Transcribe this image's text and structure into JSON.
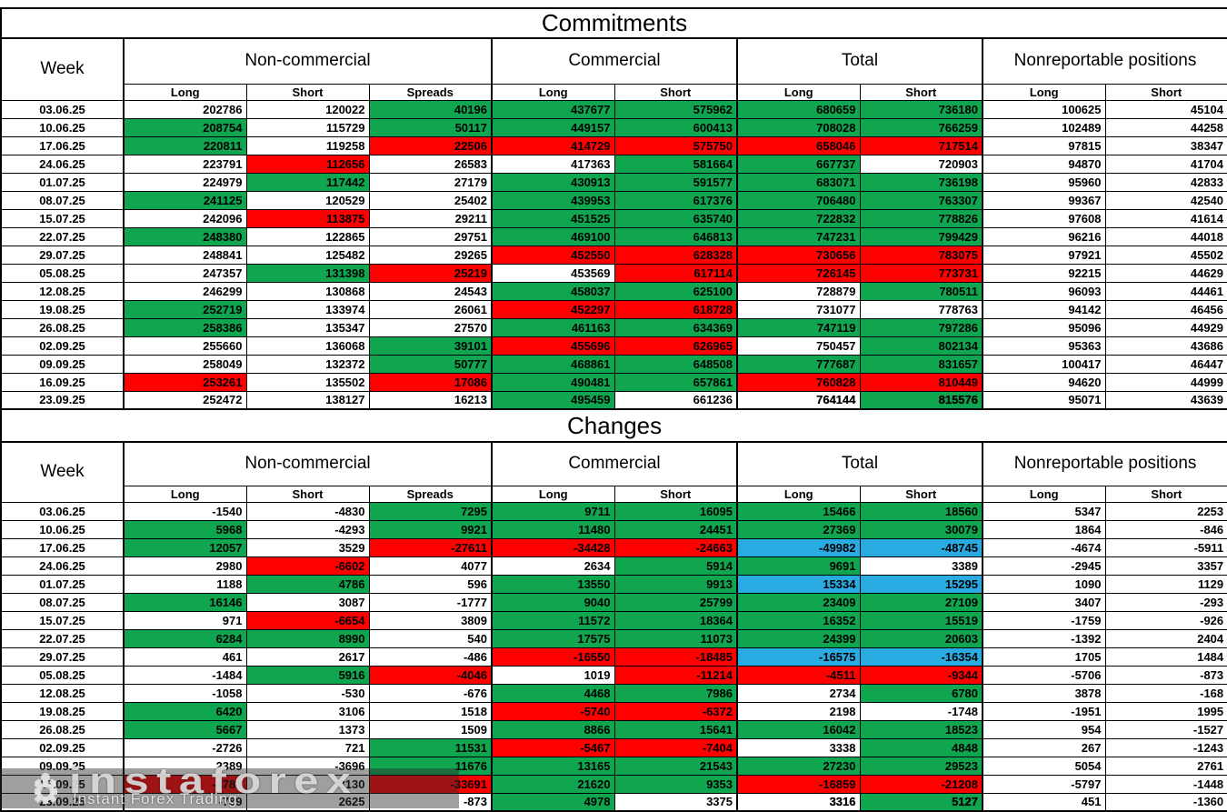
{
  "colors": {
    "g": "#10A64F",
    "r": "#FE0000",
    "b": "#29ABE2",
    "w": "#FFFFFF"
  },
  "header": {
    "week": "Week",
    "groups": [
      {
        "label": "Non-commercial",
        "cols": [
          "Long",
          "Short",
          "Spreads"
        ]
      },
      {
        "label": "Commercial",
        "cols": [
          "Long",
          "Short"
        ]
      },
      {
        "label": "Total",
        "cols": [
          "Long",
          "Short"
        ]
      },
      {
        "label": "Nonreportable positions",
        "cols": [
          "Long",
          "Short"
        ]
      }
    ]
  },
  "watermark": {
    "brand": "instaforex",
    "tagline": "Instant Forex Trading"
  },
  "tables": [
    {
      "id": "commitments",
      "title": "Commitments",
      "rows": [
        {
          "w": "03.06.25",
          "v": [
            202786,
            120022,
            40196,
            437677,
            575962,
            680659,
            736180,
            100625,
            45104
          ],
          "f": "wwgggggww"
        },
        {
          "w": "10.06.25",
          "v": [
            208754,
            115729,
            50117,
            449157,
            600413,
            708028,
            766259,
            102489,
            44258
          ],
          "f": "gwgggggww"
        },
        {
          "w": "17.06.25",
          "v": [
            220811,
            119258,
            22506,
            414729,
            575750,
            658046,
            717514,
            97815,
            38347
          ],
          "f": "gwrrrrrww"
        },
        {
          "w": "24.06.25",
          "v": [
            223791,
            112656,
            26583,
            417363,
            581664,
            667737,
            720903,
            94870,
            41704
          ],
          "f": "wrwwggwww"
        },
        {
          "w": "01.07.25",
          "v": [
            224979,
            117442,
            27179,
            430913,
            591577,
            683071,
            736198,
            95960,
            42833
          ],
          "f": "wgwggggww"
        },
        {
          "w": "08.07.25",
          "v": [
            241125,
            120529,
            25402,
            439953,
            617376,
            706480,
            763307,
            99367,
            42540
          ],
          "f": "gwwggggww"
        },
        {
          "w": "15.07.25",
          "v": [
            242096,
            113875,
            29211,
            451525,
            635740,
            722832,
            778826,
            97608,
            41614
          ],
          "f": "wrwggggww"
        },
        {
          "w": "22.07.25",
          "v": [
            248380,
            122865,
            29751,
            469100,
            646813,
            747231,
            799429,
            96216,
            44018
          ],
          "f": "gwwggggww"
        },
        {
          "w": "29.07.25",
          "v": [
            248841,
            125482,
            29265,
            452550,
            628328,
            730656,
            783075,
            97921,
            45502
          ],
          "f": "wwwrrrrww"
        },
        {
          "w": "05.08.25",
          "v": [
            247357,
            131398,
            25219,
            453569,
            617114,
            726145,
            773731,
            92215,
            44629
          ],
          "f": "wgrwrrrww"
        },
        {
          "w": "12.08.25",
          "v": [
            246299,
            130868,
            24543,
            458037,
            625100,
            728879,
            780511,
            96093,
            44461
          ],
          "f": "wwwggwgww"
        },
        {
          "w": "19.08.25",
          "v": [
            252719,
            133974,
            26061,
            452297,
            618728,
            731077,
            778763,
            94142,
            46456
          ],
          "f": "gwwrrwwww"
        },
        {
          "w": "26.08.25",
          "v": [
            258386,
            135347,
            27570,
            461163,
            634369,
            747119,
            797286,
            95096,
            44929
          ],
          "f": "gwwggggww"
        },
        {
          "w": "02.09.25",
          "v": [
            255660,
            136068,
            39101,
            455696,
            626965,
            750457,
            802134,
            95363,
            43686
          ],
          "f": "wwgrrwgww"
        },
        {
          "w": "09.09.25",
          "v": [
            258049,
            132372,
            50777,
            468861,
            648508,
            777687,
            831657,
            100417,
            46447
          ],
          "f": "wwgggggww"
        },
        {
          "w": "16.09.25",
          "v": [
            253261,
            135502,
            17086,
            490481,
            657861,
            760828,
            810449,
            94620,
            44999
          ],
          "f": "rwrggrrww"
        },
        {
          "w": "23.09.25",
          "v": [
            252472,
            138127,
            16213,
            495459,
            661236,
            764144,
            815576,
            95071,
            43639
          ],
          "f": "wwwgwwgww",
          "b": [
            5,
            6
          ]
        }
      ]
    },
    {
      "id": "changes",
      "title": "Changes",
      "rows": [
        {
          "w": "03.06.25",
          "v": [
            -1540,
            -4830,
            7295,
            9711,
            16095,
            15466,
            18560,
            5347,
            2253
          ],
          "f": "wwgggggww"
        },
        {
          "w": "10.06.25",
          "v": [
            5968,
            -4293,
            9921,
            11480,
            24451,
            27369,
            30079,
            1864,
            -846
          ],
          "f": "gwgggggww"
        },
        {
          "w": "17.06.25",
          "v": [
            12057,
            3529,
            -27611,
            -34428,
            -24663,
            -49982,
            -48745,
            -4674,
            -5911
          ],
          "f": "gwrrrbbww"
        },
        {
          "w": "24.06.25",
          "v": [
            2980,
            -6602,
            4077,
            2634,
            5914,
            9691,
            3389,
            -2945,
            3357
          ],
          "f": "wrwwggwww"
        },
        {
          "w": "01.07.25",
          "v": [
            1188,
            4786,
            596,
            13550,
            9913,
            15334,
            15295,
            1090,
            1129
          ],
          "f": "wgwggbbww"
        },
        {
          "w": "08.07.25",
          "v": [
            16146,
            3087,
            -1777,
            9040,
            25799,
            23409,
            27109,
            3407,
            -293
          ],
          "f": "gwwggggww"
        },
        {
          "w": "15.07.25",
          "v": [
            971,
            -6654,
            3809,
            11572,
            18364,
            16352,
            15519,
            -1759,
            -926
          ],
          "f": "wrwggggww"
        },
        {
          "w": "22.07.25",
          "v": [
            6284,
            8990,
            540,
            17575,
            11073,
            24399,
            20603,
            -1392,
            2404
          ],
          "f": "ggwggggww"
        },
        {
          "w": "29.07.25",
          "v": [
            461,
            2617,
            -486,
            -16550,
            -18485,
            -16575,
            -16354,
            1705,
            1484
          ],
          "f": "wwwrrbbww"
        },
        {
          "w": "05.08.25",
          "v": [
            -1484,
            5916,
            -4046,
            1019,
            -11214,
            -4511,
            -9344,
            -5706,
            -873
          ],
          "f": "wgrwrrrww"
        },
        {
          "w": "12.08.25",
          "v": [
            -1058,
            -530,
            -676,
            4468,
            7986,
            2734,
            6780,
            3878,
            -168
          ],
          "f": "wwwggwgww"
        },
        {
          "w": "19.08.25",
          "v": [
            6420,
            3106,
            1518,
            -5740,
            -6372,
            2198,
            -1748,
            -1951,
            1995
          ],
          "f": "gwwrrwwww"
        },
        {
          "w": "26.08.25",
          "v": [
            5667,
            1373,
            1509,
            8866,
            15641,
            16042,
            18523,
            954,
            -1527
          ],
          "f": "gwwggggww"
        },
        {
          "w": "02.09.25",
          "v": [
            -2726,
            721,
            11531,
            -5467,
            -7404,
            3338,
            4848,
            267,
            -1243
          ],
          "f": "wwgrrwgww"
        },
        {
          "w": "09.09.25",
          "v": [
            2389,
            -3696,
            11676,
            13165,
            21543,
            27230,
            29523,
            5054,
            2761
          ],
          "f": "wwgggggww"
        },
        {
          "w": "16.09.25",
          "v": [
            -4788,
            3130,
            -33691,
            21620,
            9353,
            -16859,
            -21208,
            -5797,
            -1448
          ],
          "f": "rwrggrrww"
        },
        {
          "w": "23.09.25",
          "v": [
            -789,
            2625,
            -873,
            4978,
            3375,
            3316,
            5127,
            451,
            -1360
          ],
          "f": "wwwgwwgww",
          "b": [
            5,
            6
          ]
        }
      ]
    }
  ]
}
